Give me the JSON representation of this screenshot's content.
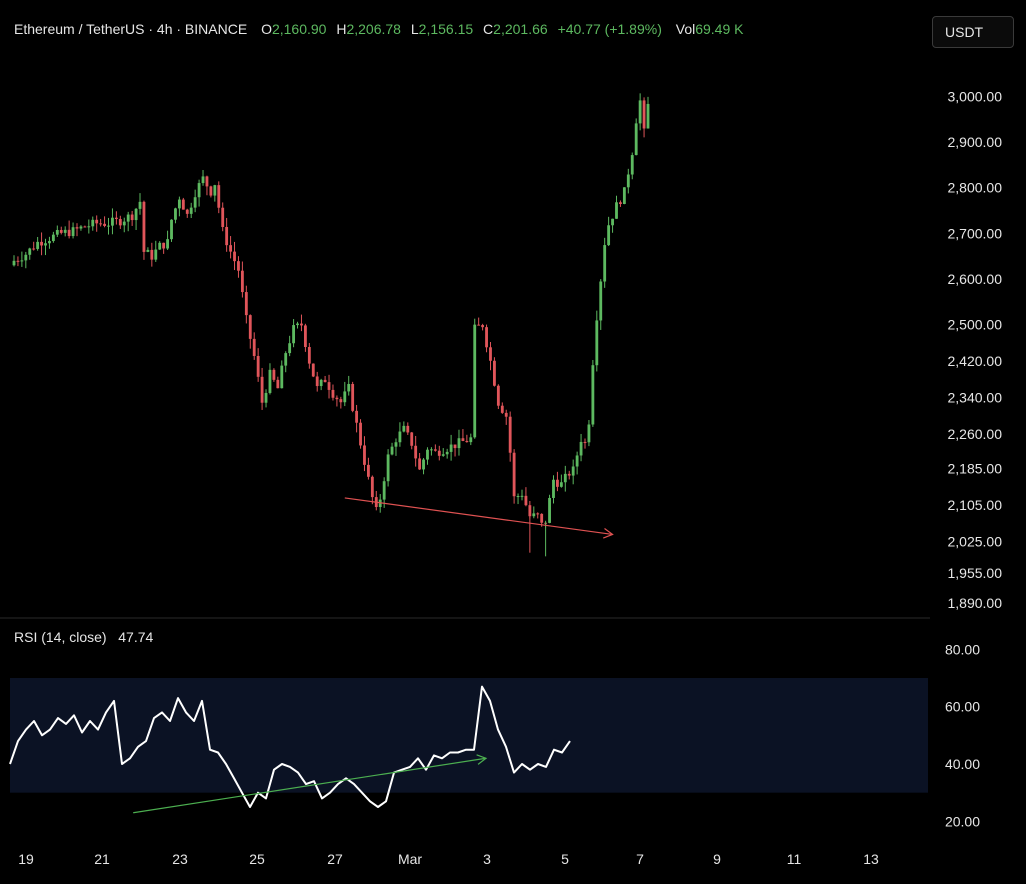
{
  "header": {
    "symbol": "Ethereum / TetherUS · 4h · BINANCE",
    "open_label": "O",
    "open": "2,160.90",
    "high_label": "H",
    "high": "2,206.78",
    "low_label": "L",
    "low": "2,156.15",
    "close_label": "C",
    "close": "2,201.66",
    "change": "+40.77 (+1.89%)",
    "vol_label": "Vol",
    "vol": "69.49 K"
  },
  "currency_button": "USDT",
  "colors": {
    "up": "#5db960",
    "down": "#e0555a",
    "rsi_line": "#ffffff",
    "rsi_band": "#0b1224",
    "rsi_trend": "#4caf50",
    "price_trend": "#e05252"
  },
  "chart_data": [
    {
      "type": "candlestick",
      "title": "",
      "ylim": [
        1870,
        3080
      ],
      "y_ticks": [
        "3,000.00",
        "2,900.00",
        "2,800.00",
        "2,700.00",
        "2,600.00",
        "2,500.00",
        "2,420.00",
        "2,340.00",
        "2,260.00",
        "2,185.00",
        "2,105.00",
        "2,025.00",
        "1,955.00",
        "1,890.00"
      ],
      "x_ticks": [
        "19",
        "21",
        "23",
        "25",
        "27",
        "Mar",
        "3",
        "5",
        "7",
        "9",
        "11",
        "13"
      ],
      "close_path": [
        [
          0,
          2640
        ],
        [
          3,
          2655
        ],
        [
          6,
          2680
        ],
        [
          9,
          2690
        ],
        [
          12,
          2700
        ],
        [
          15,
          2705
        ],
        [
          18,
          2715
        ],
        [
          21,
          2722
        ],
        [
          24,
          2722
        ],
        [
          27,
          2728
        ],
        [
          30,
          2740
        ],
        [
          32,
          2770
        ],
        [
          33,
          2660
        ],
        [
          35,
          2650
        ],
        [
          37,
          2672
        ],
        [
          39,
          2680
        ],
        [
          40,
          2730
        ],
        [
          42,
          2780
        ],
        [
          44,
          2740
        ],
        [
          46,
          2790
        ],
        [
          48,
          2820
        ],
        [
          50,
          2792
        ],
        [
          51,
          2810
        ],
        [
          53,
          2705
        ],
        [
          55,
          2660
        ],
        [
          57,
          2620
        ],
        [
          59,
          2510
        ],
        [
          61,
          2430
        ],
        [
          63,
          2330
        ],
        [
          65,
          2390
        ],
        [
          67,
          2360
        ],
        [
          69,
          2440
        ],
        [
          71,
          2490
        ],
        [
          73,
          2500
        ],
        [
          75,
          2420
        ],
        [
          77,
          2360
        ],
        [
          79,
          2380
        ],
        [
          81,
          2350
        ],
        [
          83,
          2330
        ],
        [
          85,
          2360
        ],
        [
          87,
          2280
        ],
        [
          89,
          2200
        ],
        [
          91,
          2120
        ],
        [
          92,
          2090
        ],
        [
          93,
          2120
        ],
        [
          95,
          2210
        ],
        [
          97,
          2250
        ],
        [
          99,
          2270
        ],
        [
          101,
          2240
        ],
        [
          103,
          2180
        ],
        [
          105,
          2230
        ],
        [
          107,
          2220
        ],
        [
          110,
          2230
        ],
        [
          113,
          2240
        ],
        [
          116,
          2250
        ],
        [
          117,
          2490
        ],
        [
          119,
          2500
        ],
        [
          121,
          2420
        ],
        [
          123,
          2330
        ],
        [
          125,
          2300
        ],
        [
          126,
          2220
        ],
        [
          127,
          2120
        ],
        [
          129,
          2130
        ],
        [
          131,
          2080
        ],
        [
          133,
          2080
        ],
        [
          134,
          2060
        ],
        [
          135,
          2070
        ],
        [
          137,
          2160
        ],
        [
          139,
          2150
        ],
        [
          141,
          2175
        ],
        [
          142,
          2180
        ],
        [
          144,
          2250
        ],
        [
          145,
          2240
        ],
        [
          146,
          2290
        ],
        [
          147,
          2420
        ],
        [
          148,
          2520
        ],
        [
          149,
          2600
        ],
        [
          150,
          2680
        ],
        [
          151,
          2720
        ],
        [
          153,
          2760
        ],
        [
          155,
          2790
        ],
        [
          157,
          2880
        ],
        [
          158,
          2950
        ],
        [
          159,
          2990
        ],
        [
          160,
          2920
        ],
        [
          161,
          2980
        ]
      ],
      "price_trend": {
        "from": [
          84,
          2120
        ],
        "to": [
          152,
          2040
        ]
      }
    },
    {
      "type": "line",
      "title": "",
      "name": "RSI (14, close)",
      "last_value": "47.74",
      "ylim": [
        10,
        85
      ],
      "y_ticks": [
        "80.00",
        "60.00",
        "40.00",
        "20.00"
      ],
      "band": [
        30,
        70
      ],
      "values": [
        40,
        48,
        52,
        55,
        50,
        52,
        56,
        54,
        57,
        51,
        55,
        52,
        58,
        62,
        40,
        42,
        46,
        48,
        56,
        58,
        55,
        63,
        58,
        55,
        62,
        45,
        44,
        40,
        35,
        30,
        25,
        30,
        28,
        38,
        40,
        39,
        37,
        33,
        34,
        28,
        30,
        33,
        35,
        33,
        30,
        27,
        25,
        27,
        37,
        38,
        39,
        42,
        38,
        43,
        42,
        44,
        44,
        45,
        45,
        67,
        62,
        52,
        46,
        37,
        40,
        38,
        40,
        39,
        45,
        44,
        48
      ],
      "trend": {
        "from": [
          22,
          23
        ],
        "to": [
          85,
          42
        ]
      }
    }
  ]
}
